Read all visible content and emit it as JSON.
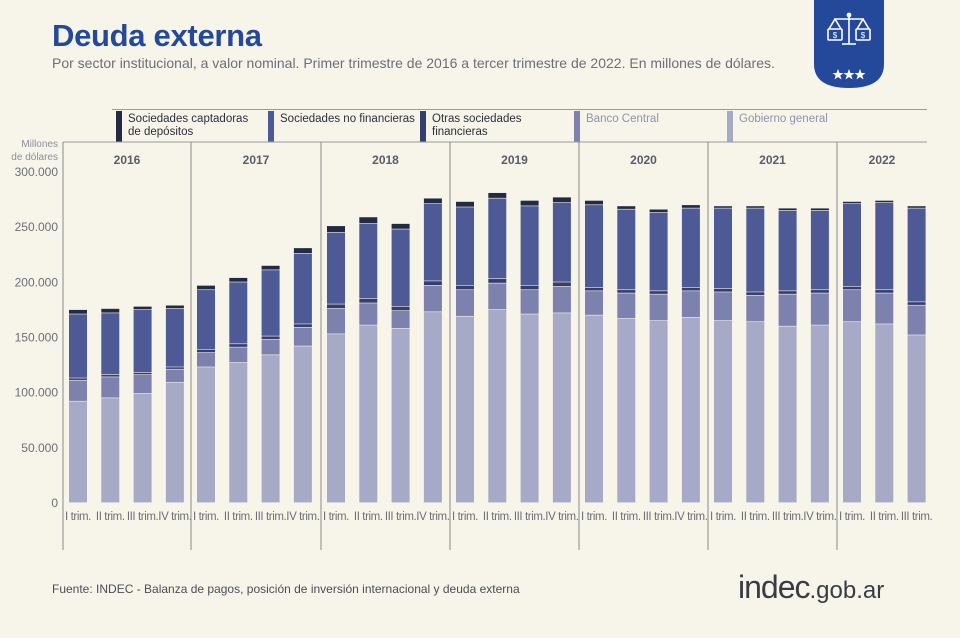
{
  "header": {
    "title": "Deuda externa",
    "subtitle": "Por sector institucional, a valor nominal. Primer trimestre de 2016 a tercer trimestre de 2022. En millones de dólares."
  },
  "footer": {
    "source": "Fuente: INDEC -  Balanza de pagos, posición de inversión internacional y deuda externa",
    "logo_main": "indec",
    "logo_domain": ".gob.ar"
  },
  "chart_data": {
    "type": "bar",
    "stacked": true,
    "title": "Deuda externa",
    "subtitle": "Por sector institucional, a valor nominal. Primer trimestre de 2016 a tercer trimestre de 2022. En millones de dólares.",
    "ylabel": "Millones de dólares",
    "ylim": [
      0,
      300000
    ],
    "yticks": [
      0,
      50000,
      100000,
      150000,
      200000,
      250000,
      300000
    ],
    "ytick_labels": [
      "0",
      "50.000",
      "100.000",
      "150.000",
      "200.000",
      "250.000",
      "300.000"
    ],
    "years": [
      {
        "label": "2016",
        "quarters": 4
      },
      {
        "label": "2017",
        "quarters": 4
      },
      {
        "label": "2018",
        "quarters": 4
      },
      {
        "label": "2019",
        "quarters": 4
      },
      {
        "label": "2020",
        "quarters": 4
      },
      {
        "label": "2021",
        "quarters": 4
      },
      {
        "label": "2022",
        "quarters": 3
      }
    ],
    "categories": [
      "I trim.",
      "II trim.",
      "III trim.",
      "IV trim.",
      "I trim.",
      "II trim.",
      "III trim.",
      "IV trim.",
      "I trim.",
      "II trim.",
      "III trim.",
      "IV trim.",
      "I trim.",
      "II trim.",
      "III trim.",
      "IV trim.",
      "I trim.",
      "II trim.",
      "III trim.",
      "IV trim.",
      "I trim.",
      "II trim.",
      "III trim.",
      "IV trim.",
      "I trim.",
      "II trim.",
      "III trim."
    ],
    "legend_position": "top",
    "series": [
      {
        "name": "Gobierno general",
        "color": "#a7aac6",
        "values": [
          92000,
          95000,
          99000,
          109000,
          123000,
          127000,
          134000,
          142000,
          153000,
          161000,
          158000,
          173000,
          169000,
          175000,
          171000,
          172000,
          170000,
          167000,
          165000,
          168000,
          165000,
          164000,
          160000,
          161000,
          164000,
          162000,
          152000
        ]
      },
      {
        "name": "Banco Central",
        "color": "#7c81ad",
        "values": [
          19000,
          19000,
          17000,
          12000,
          13000,
          14000,
          14000,
          17000,
          23000,
          20000,
          16000,
          24000,
          24000,
          24000,
          22000,
          24000,
          22000,
          23000,
          24000,
          24000,
          26000,
          24000,
          29000,
          29000,
          29000,
          28000,
          27000
        ]
      },
      {
        "name": "Otras sociedades financieras",
        "color": "#363e6e",
        "values": [
          2000,
          2000,
          2000,
          2000,
          3000,
          3000,
          3000,
          3000,
          4000,
          4000,
          4000,
          4000,
          4000,
          4000,
          4000,
          4000,
          3000,
          3000,
          3000,
          3000,
          3000,
          3000,
          3000,
          3000,
          3000,
          3000,
          3000
        ]
      },
      {
        "name": "Sociedades no financieras",
        "color": "#4e5a95",
        "values": [
          58000,
          56000,
          57000,
          53000,
          54000,
          56000,
          60000,
          64000,
          65000,
          68000,
          70000,
          70000,
          71000,
          73000,
          72000,
          72000,
          75000,
          73000,
          71000,
          72000,
          73000,
          76000,
          73000,
          72000,
          75000,
          79000,
          85000
        ]
      },
      {
        "name": "Sociedades captadoras de depósitos",
        "color": "#232b44",
        "values": [
          4000,
          4000,
          3000,
          3000,
          4000,
          4000,
          4000,
          5000,
          6000,
          6000,
          5000,
          5000,
          5000,
          5000,
          5000,
          5000,
          4000,
          3000,
          3000,
          3000,
          2000,
          2000,
          2000,
          2000,
          2000,
          2000,
          2000
        ]
      }
    ]
  },
  "legend": {
    "items": [
      {
        "label": "Sociedades captadoras de depósitos",
        "color": "#232b44"
      },
      {
        "label": "Sociedades no financieras",
        "color": "#4e5a95"
      },
      {
        "label": "Otras sociedades financieras",
        "color": "#363e6e"
      },
      {
        "label": "Banco Central",
        "color": "#7c81ad"
      },
      {
        "label": "Gobierno general",
        "color": "#a7aac6"
      }
    ]
  }
}
